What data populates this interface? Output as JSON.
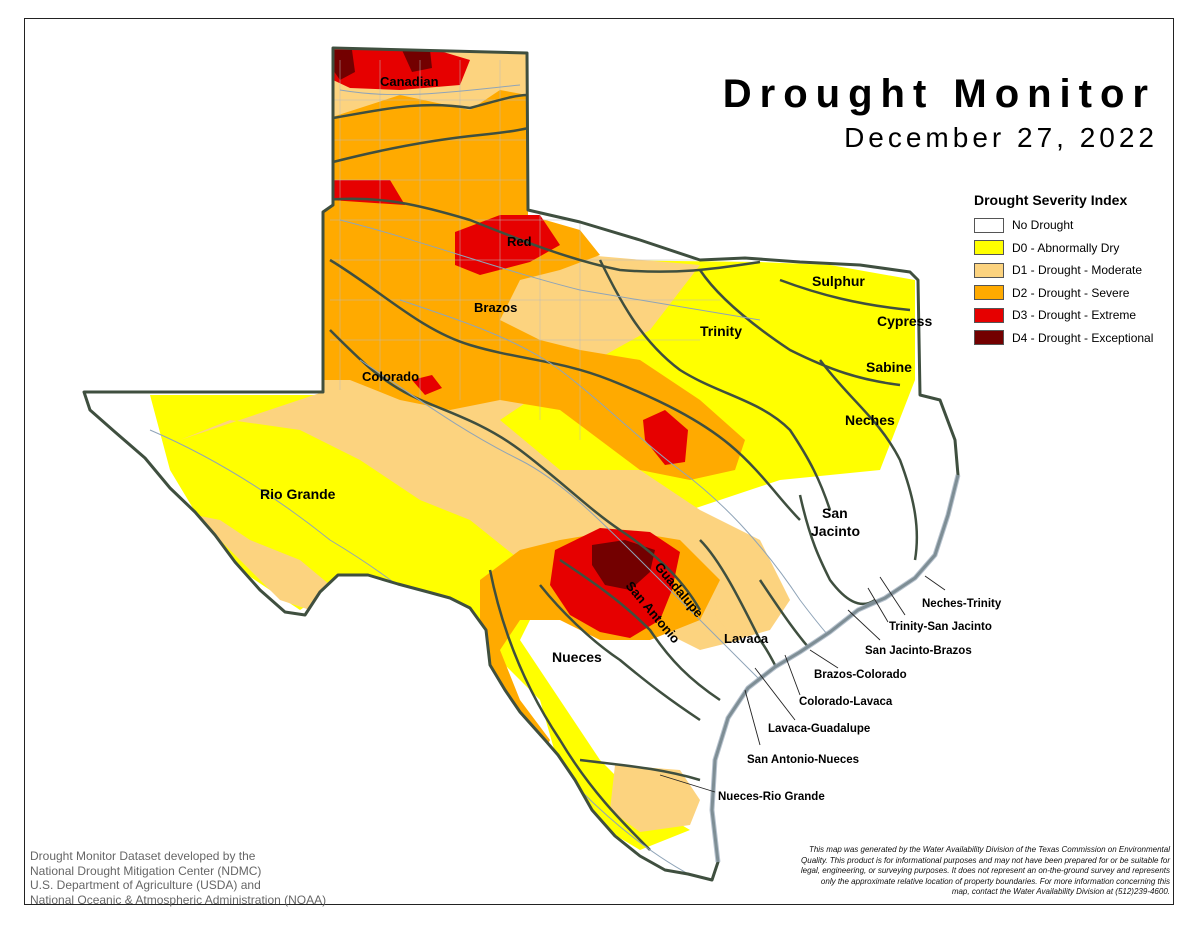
{
  "title": "Drought Monitor",
  "date": "December 27, 2022",
  "legend": {
    "title": "Drought Severity Index",
    "items": [
      {
        "label": "No Drought",
        "color": "#ffffff"
      },
      {
        "label": "D0 - Abnormally Dry",
        "color": "#ffff00"
      },
      {
        "label": "D1 - Drought - Moderate",
        "color": "#fcd37f"
      },
      {
        "label": "D2 - Drought - Severe",
        "color": "#ffaa00"
      },
      {
        "label": "D3 - Drought - Extreme",
        "color": "#e60000"
      },
      {
        "label": "D4 - Drought - Exceptional",
        "color": "#730000"
      }
    ]
  },
  "basins": {
    "canadian": "Canadian",
    "red": "Red",
    "brazos": "Brazos",
    "colorado": "Colorado",
    "rio_grande": "Rio Grande",
    "trinity": "Trinity",
    "sulphur": "Sulphur",
    "cypress": "Cypress",
    "sabine": "Sabine",
    "neches": "Neches",
    "san_jacinto_1": "San",
    "san_jacinto_2": "Jacinto",
    "guadalupe": "Guadalupe",
    "san_antonio": "San Antonio",
    "lavaca": "Lavaca",
    "nueces": "Nueces"
  },
  "coastal_basins": {
    "neches_trinity": "Neches-Trinity",
    "trinity_san_jacinto": "Trinity-San Jacinto",
    "san_jacinto_brazos": "San Jacinto-Brazos",
    "brazos_colorado": "Brazos-Colorado",
    "colorado_lavaca": "Colorado-Lavaca",
    "lavaca_guadalupe": "Lavaca-Guadalupe",
    "san_antonio_nueces": "San Antonio-Nueces",
    "nueces_rio_grande": "Nueces-Rio Grande"
  },
  "credits": [
    "Drought Monitor Dataset developed by the",
    "National Drought Mitigation Center (NDMC)",
    "U.S. Department of Agriculture (USDA) and",
    "National Oceanic & Atmospheric Administration (NOAA)"
  ],
  "disclaimer": [
    "This map was generated by the Water Availability Division of the Texas Commission on Environmental",
    "Quality. This product is for informational purposes and may not have been prepared for or be suitable for",
    "legal, engineering, or surveying purposes. It does not represent an on-the-ground survey and represents",
    "only the approximate relative location of property boundaries. For more information concerning this",
    "map, contact the Water Availability Division at (512)239-4600."
  ]
}
